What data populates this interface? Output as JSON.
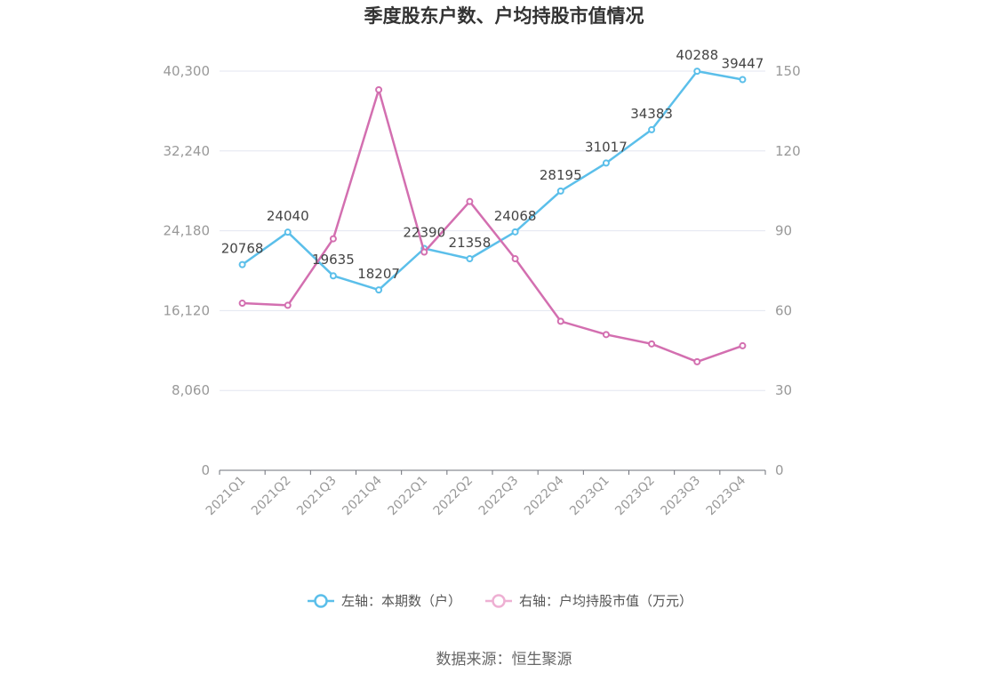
{
  "chart_data": {
    "type": "line",
    "title": "季度股东户数、户均持股市值情况",
    "categories": [
      "2021Q1",
      "2021Q2",
      "2021Q3",
      "2021Q4",
      "2022Q1",
      "2022Q2",
      "2022Q3",
      "2022Q4",
      "2023Q1",
      "2023Q2",
      "2023Q3",
      "2023Q4"
    ],
    "left_axis": {
      "ticks": [
        "0",
        "8,060",
        "16,120",
        "24,180",
        "32,240",
        "40,300"
      ],
      "ylim": [
        0,
        40300
      ]
    },
    "right_axis": {
      "ticks": [
        "0",
        "30",
        "60",
        "90",
        "120",
        "150"
      ],
      "ylim": [
        0,
        150
      ]
    },
    "series": [
      {
        "name": "左轴：本期数（户）",
        "axis": "left",
        "color": "#5bbfea",
        "values": [
          20768,
          24040,
          19635,
          18207,
          22390,
          21358,
          24068,
          28195,
          31017,
          34383,
          40288,
          39447
        ],
        "labels": [
          "20768",
          "24040",
          "19635",
          "18207",
          "22390",
          "21358",
          "24068",
          "28195",
          "31017",
          "34383",
          "40288",
          "39447"
        ]
      },
      {
        "name": "右轴：户均持股市值（万元）",
        "axis": "right",
        "color": "#d36fb0",
        "legend_color": "#eeb0d3",
        "values": [
          62.8,
          62.0,
          87.0,
          143.0,
          82.0,
          101.0,
          79.5,
          56.0,
          51.0,
          47.5,
          40.8,
          46.8
        ]
      }
    ],
    "grid": true,
    "legend_position": "bottom"
  },
  "footer": {
    "source": "数据来源：恒生聚源"
  }
}
